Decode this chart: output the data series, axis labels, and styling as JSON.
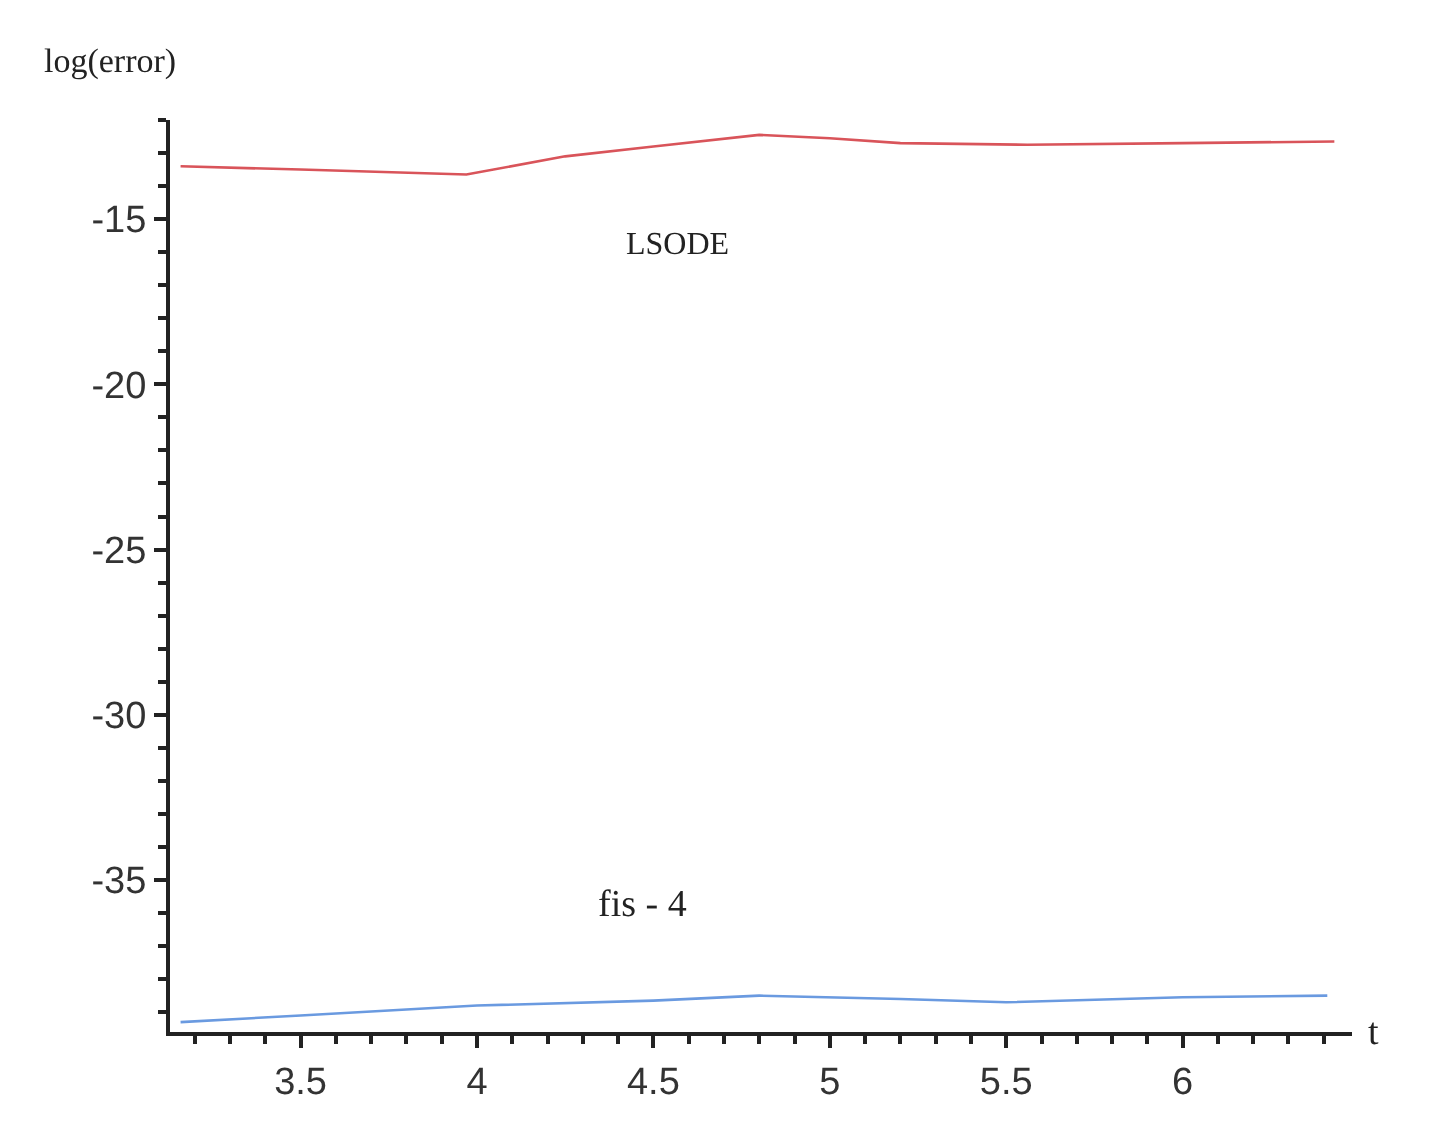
{
  "chart_data": {
    "type": "line",
    "xlabel": "t",
    "ylabel": "log(error)",
    "xlim": [
      3.13,
      6.48
    ],
    "xticks": [
      3.5,
      4,
      4.5,
      5,
      5.5,
      6
    ],
    "ylim": [
      -39.6,
      -12
    ],
    "yticks": [
      -35,
      -30,
      -25,
      -20,
      -15
    ],
    "legend": false,
    "marker": "none",
    "line_style": "solid",
    "series": [
      {
        "name": "LSODE",
        "color": "#d9545a",
        "x": [
          3.16,
          3.5,
          3.97,
          4.25,
          4.5,
          4.8,
          5.0,
          5.2,
          5.56,
          6.0,
          6.43
        ],
        "values": [
          -13.4,
          -13.5,
          -13.65,
          -13.1,
          -12.8,
          -12.45,
          -12.55,
          -12.7,
          -12.75,
          -12.7,
          -12.65
        ]
      },
      {
        "name": "fis - 4",
        "color": "#6a9ae0",
        "x": [
          3.16,
          3.5,
          4.0,
          4.5,
          4.8,
          5.2,
          5.5,
          6.0,
          6.41
        ],
        "values": [
          -39.3,
          -39.1,
          -38.8,
          -38.65,
          -38.5,
          -38.6,
          -38.7,
          -38.55,
          -38.5
        ]
      }
    ]
  }
}
